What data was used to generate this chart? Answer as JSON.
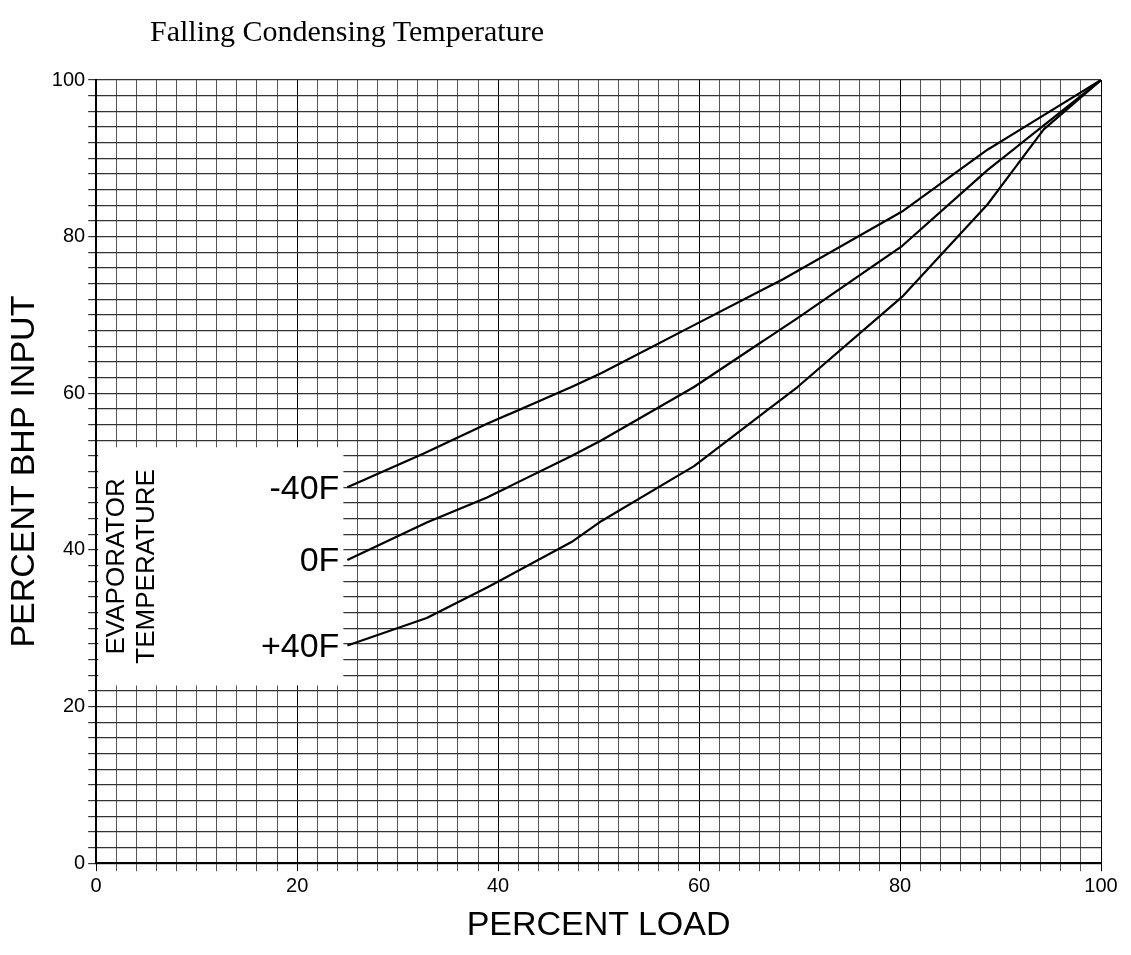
{
  "chart_data": {
    "type": "line",
    "title": "Falling Condensing Temperature",
    "xlabel": "PERCENT LOAD",
    "ylabel": "PERCENT BHP INPUT",
    "legend_title": "EVAPORATOR TEMPERATURE",
    "series": [
      {
        "name": "-40F",
        "color": "#000000",
        "x": [
          25,
          32.6,
          38.9,
          47.3,
          50.3,
          59.5,
          68.4,
          80.2,
          88.7,
          100
        ],
        "values": [
          48,
          52.3,
          56.1,
          60.8,
          62.6,
          68.7,
          74.6,
          83.2,
          91.1,
          100
        ]
      },
      {
        "name": "0F",
        "color": "#000000",
        "x": [
          25,
          32.9,
          38.9,
          47.3,
          50.3,
          59.5,
          69.8,
          80.2,
          88.7,
          100
        ],
        "values": [
          38.7,
          43.5,
          46.7,
          52,
          54,
          60.8,
          69.6,
          78.8,
          88.5,
          100
        ]
      },
      {
        "name": "+40F",
        "color": "#000000",
        "x": [
          25,
          32.9,
          38.9,
          47.3,
          50.3,
          59.5,
          69.8,
          80.2,
          88.7,
          94.3,
          100
        ],
        "values": [
          27.8,
          31.3,
          35.2,
          41,
          43.7,
          50.7,
          60.8,
          72.3,
          84.1,
          93.7,
          100
        ]
      }
    ],
    "xlim": [
      0,
      100
    ],
    "ylim": [
      0,
      100
    ],
    "xticks": [
      0,
      {
        "value": 2,
        "label": null
      },
      {
        "value": 4,
        "label": null
      },
      {
        "value": 6,
        "label": null
      },
      {
        "value": 8,
        "label": null
      },
      {
        "value": 10,
        "label": null
      },
      {
        "value": 12,
        "label": null
      },
      {
        "value": 14,
        "label": null
      },
      {
        "value": 16,
        "label": null
      },
      {
        "value": 18,
        "label": null
      },
      20,
      {
        "value": 22,
        "label": null
      },
      {
        "value": 24,
        "label": null
      },
      {
        "value": 26,
        "label": null
      },
      {
        "value": 28,
        "label": null
      },
      {
        "value": 30,
        "label": null
      },
      {
        "value": 32,
        "label": null
      },
      {
        "value": 34,
        "label": null
      },
      {
        "value": 36,
        "label": null
      },
      {
        "value": 38,
        "label": null
      },
      40,
      {
        "value": 42,
        "label": null
      },
      {
        "value": 44,
        "label": null
      },
      {
        "value": 46,
        "label": null
      },
      {
        "value": 48,
        "label": null
      },
      {
        "value": 50,
        "label": null
      },
      {
        "value": 52,
        "label": null
      },
      {
        "value": 54,
        "label": null
      },
      {
        "value": 56,
        "label": null
      },
      {
        "value": 58,
        "label": null
      },
      60,
      {
        "value": 62,
        "label": null
      },
      {
        "value": 64,
        "label": null
      },
      {
        "value": 66,
        "label": null
      },
      {
        "value": 68,
        "label": null
      },
      {
        "value": 70,
        "label": null
      },
      {
        "value": 72,
        "label": null
      },
      {
        "value": 74,
        "label": null
      },
      {
        "value": 76,
        "label": null
      },
      {
        "value": 78,
        "label": null
      },
      80,
      {
        "value": 82,
        "label": null
      },
      {
        "value": 84,
        "label": null
      },
      {
        "value": 86,
        "label": null
      },
      {
        "value": 88,
        "label": null
      },
      {
        "value": 90,
        "label": null
      },
      {
        "value": 92,
        "label": null
      },
      {
        "value": 94,
        "label": null
      },
      {
        "value": 96,
        "label": null
      },
      {
        "value": 98,
        "label": null
      },
      100
    ],
    "yticks": [
      0,
      {
        "value": 2,
        "label": null
      },
      {
        "value": 4,
        "label": null
      },
      {
        "value": 6,
        "label": null
      },
      {
        "value": 8,
        "label": null
      },
      {
        "value": 10,
        "label": null
      },
      {
        "value": 12,
        "label": null
      },
      {
        "value": 14,
        "label": null
      },
      {
        "value": 16,
        "label": null
      },
      {
        "value": 18,
        "label": null
      },
      20,
      {
        "value": 22,
        "label": null
      },
      {
        "value": 24,
        "label": null
      },
      {
        "value": 26,
        "label": null
      },
      {
        "value": 28,
        "label": null
      },
      {
        "value": 30,
        "label": null
      },
      {
        "value": 32,
        "label": null
      },
      {
        "value": 34,
        "label": null
      },
      {
        "value": 36,
        "label": null
      },
      {
        "value": 38,
        "label": null
      },
      40,
      {
        "value": 42,
        "label": null
      },
      {
        "value": 44,
        "label": null
      },
      {
        "value": 46,
        "label": null
      },
      {
        "value": 48,
        "label": null
      },
      {
        "value": 50,
        "label": null
      },
      {
        "value": 52,
        "label": null
      },
      {
        "value": 54,
        "label": null
      },
      {
        "value": 56,
        "label": null
      },
      {
        "value": 58,
        "label": null
      },
      60,
      {
        "value": 62,
        "label": null
      },
      {
        "value": 64,
        "label": null
      },
      {
        "value": 66,
        "label": null
      },
      {
        "value": 68,
        "label": null
      },
      {
        "value": 70,
        "label": null
      },
      {
        "value": 72,
        "label": null
      },
      {
        "value": 74,
        "label": null
      },
      {
        "value": 76,
        "label": null
      },
      {
        "value": 78,
        "label": null
      },
      80,
      {
        "value": 82,
        "label": null
      },
      {
        "value": 84,
        "label": null
      },
      {
        "value": 86,
        "label": null
      },
      {
        "value": 88,
        "label": null
      },
      {
        "value": 90,
        "label": null
      },
      {
        "value": 92,
        "label": null
      },
      {
        "value": 94,
        "label": null
      },
      {
        "value": 96,
        "label": null
      },
      {
        "value": 98,
        "label": null
      },
      100
    ],
    "grid": true,
    "marker": "none",
    "line_style": "solid"
  }
}
